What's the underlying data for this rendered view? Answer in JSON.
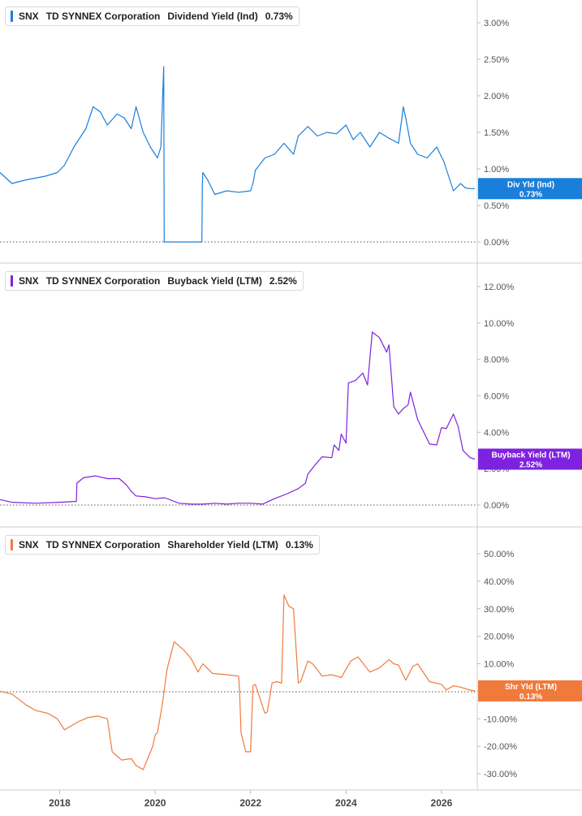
{
  "x_axis_ticks": [
    "2018",
    "2020",
    "2022",
    "2024",
    "2026"
  ],
  "panels": [
    {
      "ticker": "SNX",
      "company": "TD SYNNEX Corporation",
      "metric": "Dividend Yield (Ind)",
      "value": "0.73%",
      "color": "#1a7fdb",
      "badge_line1": "Div Yld (Ind)",
      "badge_line2": "0.73%",
      "y_ticks": [
        "3.00%",
        "2.50%",
        "2.00%",
        "1.50%",
        "1.00%",
        "0.50%",
        "0.00%"
      ]
    },
    {
      "ticker": "SNX",
      "company": "TD SYNNEX Corporation",
      "metric": "Buyback Yield (LTM)",
      "value": "2.52%",
      "color": "#7e22e0",
      "badge_line1": "Buyback Yield (LTM)",
      "badge_line2": "2.52%",
      "y_ticks": [
        "12.00%",
        "10.00%",
        "8.00%",
        "6.00%",
        "4.00%",
        "2.00%",
        "0.00%"
      ]
    },
    {
      "ticker": "SNX",
      "company": "TD SYNNEX Corporation",
      "metric": "Shareholder Yield (LTM)",
      "value": "0.13%",
      "color": "#f07a3c",
      "badge_line1": "Shr Yld (LTM)",
      "badge_line2": "0.13%",
      "y_ticks": [
        "50.00%",
        "40.00%",
        "30.00%",
        "20.00%",
        "10.00%",
        "0.00%",
        "-10.00%",
        "-20.00%",
        "-30.00%"
      ]
    }
  ],
  "chart_data": [
    {
      "type": "line",
      "title": "SNX TD SYNNEX Corporation Dividend Yield (Ind) 0.73%",
      "xlabel": "",
      "ylabel": "",
      "xlim": [
        2016.75,
        2026.75
      ],
      "ylim": [
        0,
        3.0
      ],
      "grid": false,
      "legend": "top-left",
      "series": [
        {
          "name": "Dividend Yield (Ind)",
          "x": [
            2016.75,
            2017.0,
            2017.3,
            2017.7,
            2017.95,
            2018.1,
            2018.3,
            2018.55,
            2018.7,
            2018.85,
            2019.0,
            2019.2,
            2019.35,
            2019.5,
            2019.6,
            2019.75,
            2019.9,
            2020.05,
            2020.12,
            2020.18,
            2020.19,
            2020.21,
            2020.4,
            2020.6,
            2020.8,
            2020.98,
            2020.99,
            2021.0,
            2021.1,
            2021.25,
            2021.5,
            2021.75,
            2022.0,
            2022.05,
            2022.1,
            2022.3,
            2022.5,
            2022.7,
            2022.9,
            2023.0,
            2023.2,
            2023.4,
            2023.6,
            2023.8,
            2024.0,
            2024.15,
            2024.3,
            2024.5,
            2024.7,
            2024.9,
            2025.1,
            2025.2,
            2025.25,
            2025.35,
            2025.5,
            2025.7,
            2025.9,
            2026.05,
            2026.15,
            2026.25,
            2026.4,
            2026.5,
            2026.6,
            2026.7
          ],
          "values": [
            0.95,
            0.8,
            0.85,
            0.9,
            0.95,
            1.05,
            1.3,
            1.55,
            1.85,
            1.78,
            1.6,
            1.75,
            1.7,
            1.55,
            1.85,
            1.5,
            1.3,
            1.15,
            1.3,
            2.4,
            0.0,
            0.0,
            0.0,
            0.0,
            0.0,
            0.0,
            0.8,
            0.95,
            0.85,
            0.65,
            0.7,
            0.68,
            0.7,
            0.8,
            0.98,
            1.15,
            1.2,
            1.35,
            1.2,
            1.45,
            1.58,
            1.45,
            1.5,
            1.48,
            1.6,
            1.4,
            1.5,
            1.3,
            1.5,
            1.42,
            1.35,
            1.85,
            1.7,
            1.35,
            1.2,
            1.15,
            1.3,
            1.1,
            0.9,
            0.7,
            0.8,
            0.74,
            0.73,
            0.73
          ]
        }
      ]
    },
    {
      "type": "line",
      "title": "SNX TD SYNNEX Corporation Buyback Yield (LTM) 2.52%",
      "xlabel": "",
      "ylabel": "",
      "xlim": [
        2016.75,
        2026.75
      ],
      "ylim": [
        0,
        12.0
      ],
      "grid": false,
      "legend": "top-left",
      "series": [
        {
          "name": "Buyback Yield (LTM)",
          "x": [
            2016.75,
            2017.0,
            2017.5,
            2018.0,
            2018.35,
            2018.36,
            2018.5,
            2018.75,
            2019.0,
            2019.25,
            2019.4,
            2019.5,
            2019.6,
            2019.8,
            2020.0,
            2020.2,
            2020.4,
            2020.5,
            2020.75,
            2021.0,
            2021.25,
            2021.5,
            2021.75,
            2022.0,
            2022.25,
            2022.5,
            2022.75,
            2023.0,
            2023.15,
            2023.2,
            2023.35,
            2023.5,
            2023.7,
            2023.75,
            2023.85,
            2023.9,
            2024.0,
            2024.05,
            2024.2,
            2024.35,
            2024.45,
            2024.55,
            2024.7,
            2024.85,
            2024.9,
            2025.0,
            2025.1,
            2025.2,
            2025.3,
            2025.35,
            2025.5,
            2025.75,
            2025.9,
            2026.0,
            2026.1,
            2026.25,
            2026.35,
            2026.45,
            2026.6,
            2026.7
          ],
          "values": [
            0.3,
            0.15,
            0.1,
            0.15,
            0.2,
            1.2,
            1.5,
            1.6,
            1.45,
            1.45,
            1.1,
            0.75,
            0.5,
            0.45,
            0.35,
            0.4,
            0.2,
            0.1,
            0.05,
            0.05,
            0.1,
            0.05,
            0.1,
            0.1,
            0.05,
            0.35,
            0.6,
            0.9,
            1.2,
            1.7,
            2.2,
            2.65,
            2.6,
            3.3,
            3.0,
            3.9,
            3.4,
            6.7,
            6.85,
            7.25,
            6.6,
            9.5,
            9.2,
            8.4,
            8.8,
            5.4,
            5.0,
            5.3,
            5.5,
            6.2,
            4.7,
            3.35,
            3.3,
            4.25,
            4.2,
            5.0,
            4.3,
            3.0,
            2.6,
            2.52
          ]
        }
      ]
    },
    {
      "type": "line",
      "title": "SNX TD SYNNEX Corporation Shareholder Yield (LTM) 0.13%",
      "xlabel": "",
      "ylabel": "",
      "xlim": [
        2016.75,
        2026.75
      ],
      "ylim": [
        -35.0,
        55.0
      ],
      "grid": false,
      "legend": "top-left",
      "series": [
        {
          "name": "Shareholder Yield (LTM)",
          "x": [
            2016.75,
            2017.0,
            2017.3,
            2017.5,
            2017.75,
            2017.95,
            2018.1,
            2018.3,
            2018.4,
            2018.6,
            2018.8,
            2019.0,
            2019.1,
            2019.2,
            2019.3,
            2019.5,
            2019.6,
            2019.75,
            2019.95,
            2020.0,
            2020.05,
            2020.15,
            2020.25,
            2020.4,
            2020.6,
            2020.75,
            2020.9,
            2021.0,
            2021.2,
            2021.5,
            2021.75,
            2021.77,
            2021.8,
            2021.9,
            2022.0,
            2022.05,
            2022.1,
            2022.3,
            2022.35,
            2022.45,
            2022.55,
            2022.65,
            2022.7,
            2022.8,
            2022.9,
            2023.0,
            2023.05,
            2023.2,
            2023.3,
            2023.5,
            2023.7,
            2023.9,
            2024.1,
            2024.25,
            2024.5,
            2024.7,
            2024.9,
            2025.0,
            2025.1,
            2025.25,
            2025.4,
            2025.5,
            2025.75,
            2026.0,
            2026.1,
            2026.25,
            2026.4,
            2026.6,
            2026.7
          ],
          "values": [
            0.0,
            -1.0,
            -5.0,
            -7.0,
            -8.0,
            -10.0,
            -14.0,
            -12.0,
            -11.0,
            -9.5,
            -9.0,
            -10.0,
            -22.0,
            -23.5,
            -25.0,
            -24.5,
            -27.0,
            -28.5,
            -20.0,
            -16.0,
            -15.0,
            -5.0,
            8.0,
            18.0,
            15.0,
            12.0,
            7.0,
            10.0,
            6.5,
            6.0,
            5.5,
            0.0,
            -15.0,
            -22.0,
            -22.0,
            2.0,
            2.5,
            -8.0,
            -7.5,
            3.0,
            3.5,
            3.0,
            35.0,
            31.0,
            30.0,
            3.0,
            3.5,
            11.0,
            10.0,
            5.5,
            6.0,
            5.0,
            11.0,
            12.5,
            7.0,
            8.5,
            11.5,
            10.0,
            9.5,
            4.0,
            9.0,
            10.0,
            3.5,
            2.5,
            0.5,
            2.0,
            1.5,
            0.4,
            0.13
          ]
        }
      ]
    }
  ]
}
